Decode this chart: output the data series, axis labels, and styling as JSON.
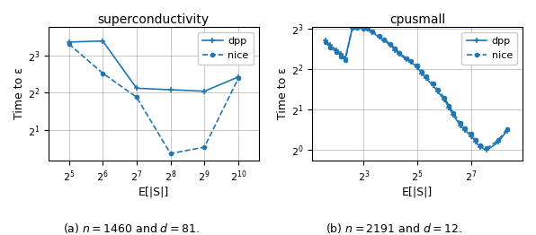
{
  "left": {
    "title": "superconductivity",
    "xlabel": "E[|S|]",
    "ylabel": "Time to ε",
    "xticks": [
      5,
      6,
      7,
      8,
      9,
      10
    ],
    "yticks": [
      1,
      2,
      3
    ],
    "ylim_log2": [
      0.2,
      3.75
    ],
    "xlim_pow": [
      4.4,
      10.6
    ],
    "dpp_x": [
      5,
      6,
      7,
      8,
      9,
      10
    ],
    "dpp_y": [
      3.35,
      3.38,
      2.12,
      2.08,
      2.04,
      2.42
    ],
    "nice_x": [
      5,
      6,
      7,
      8,
      9,
      10
    ],
    "nice_y": [
      3.3,
      2.52,
      1.88,
      0.38,
      0.55,
      2.38
    ]
  },
  "right": {
    "title": "cpusmall",
    "xlabel": "E[|S|]",
    "ylabel": "Time to ε",
    "xticks": [
      3,
      5,
      7
    ],
    "yticks": [
      0,
      1,
      2,
      3
    ],
    "ylim_log2": [
      -0.25,
      3.05
    ],
    "xlim_pow": [
      1.1,
      8.9
    ],
    "dpp_x": [
      1.58,
      1.75,
      2.0,
      2.17,
      2.32,
      2.58,
      2.75,
      3.0,
      3.17,
      3.32,
      3.58,
      3.75,
      4.0,
      4.17,
      4.32,
      4.58,
      4.75,
      5.0,
      5.17,
      5.32,
      5.58,
      5.75,
      6.0,
      6.17,
      6.32,
      6.58,
      6.75,
      7.0,
      7.17,
      7.32,
      7.58,
      8.0,
      8.32
    ],
    "dpp_y": [
      2.72,
      2.6,
      2.48,
      2.38,
      2.28,
      3.03,
      3.03,
      3.02,
      3.0,
      2.92,
      2.8,
      2.72,
      2.6,
      2.48,
      2.38,
      2.25,
      2.18,
      2.05,
      1.9,
      1.78,
      1.6,
      1.45,
      1.25,
      1.05,
      0.88,
      0.62,
      0.5,
      0.35,
      0.2,
      0.08,
      0.0,
      0.2,
      0.48
    ],
    "nice_x": [
      1.58,
      1.75,
      2.0,
      2.17,
      2.32,
      2.58,
      2.75,
      3.0,
      3.17,
      3.32,
      3.58,
      3.75,
      4.0,
      4.17,
      4.32,
      4.58,
      4.75,
      5.0,
      5.17,
      5.32,
      5.58,
      5.75,
      6.0,
      6.17,
      6.32,
      6.58,
      6.75,
      7.0,
      7.17,
      7.32,
      7.58,
      8.0,
      8.32
    ],
    "nice_y": [
      2.68,
      2.55,
      2.43,
      2.33,
      2.23,
      3.03,
      3.03,
      3.02,
      3.0,
      2.95,
      2.83,
      2.75,
      2.63,
      2.52,
      2.42,
      2.28,
      2.22,
      2.1,
      1.95,
      1.83,
      1.65,
      1.5,
      1.3,
      1.1,
      0.93,
      0.68,
      0.55,
      0.4,
      0.25,
      0.12,
      0.05,
      0.25,
      0.52
    ]
  },
  "caption_left": "(a) $n = 1460$ and $d = 81$.",
  "caption_right": "(b) $n = 2191$ and $d = 12$.",
  "line_color": "#1f77b4"
}
